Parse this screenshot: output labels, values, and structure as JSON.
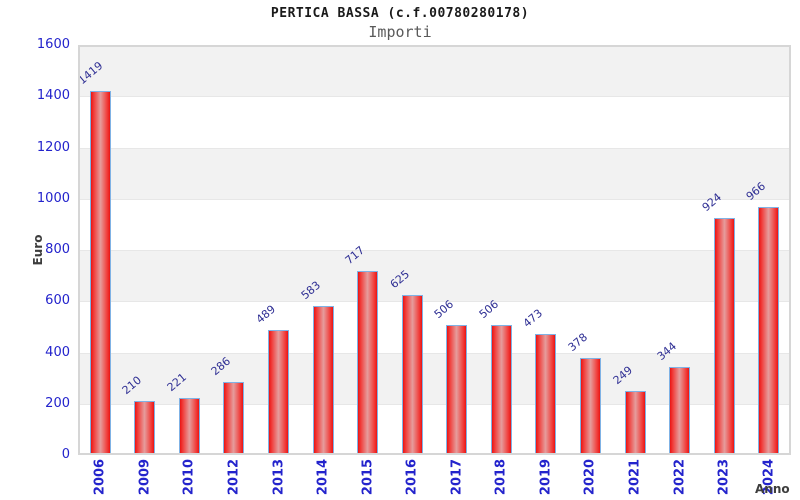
{
  "title": "PERTICA BASSA (c.f.00780280178)",
  "subtitle": "Importi",
  "chart_data": {
    "type": "bar",
    "title": "PERTICA BASSA (c.f.00780280178)",
    "subtitle": "Importi",
    "xlabel": "Anno",
    "ylabel": "Euro",
    "categories": [
      "2006",
      "2009",
      "2010",
      "2012",
      "2013",
      "2014",
      "2015",
      "2016",
      "2017",
      "2018",
      "2019",
      "2020",
      "2021",
      "2022",
      "2023",
      "2024"
    ],
    "values": [
      1419,
      210,
      221,
      286,
      489,
      583,
      717,
      625,
      506,
      506,
      473,
      378,
      249,
      344,
      924,
      966
    ],
    "ylim": [
      0,
      1600
    ],
    "ytick_step": 200,
    "grid": "horizontal alternating bands",
    "legend": "none"
  },
  "colors": {
    "tick_label": "#2323cc",
    "value_label": "#2d2d93",
    "bar_edge": "#ea1414",
    "bar_mid": "#f1403d",
    "bar_center": "#e59d9d",
    "bar_border": "#7fb2e5",
    "band_gray": "#f2f2f2",
    "gridline": "#e7e7e7",
    "frame": "#d6d6d6"
  }
}
